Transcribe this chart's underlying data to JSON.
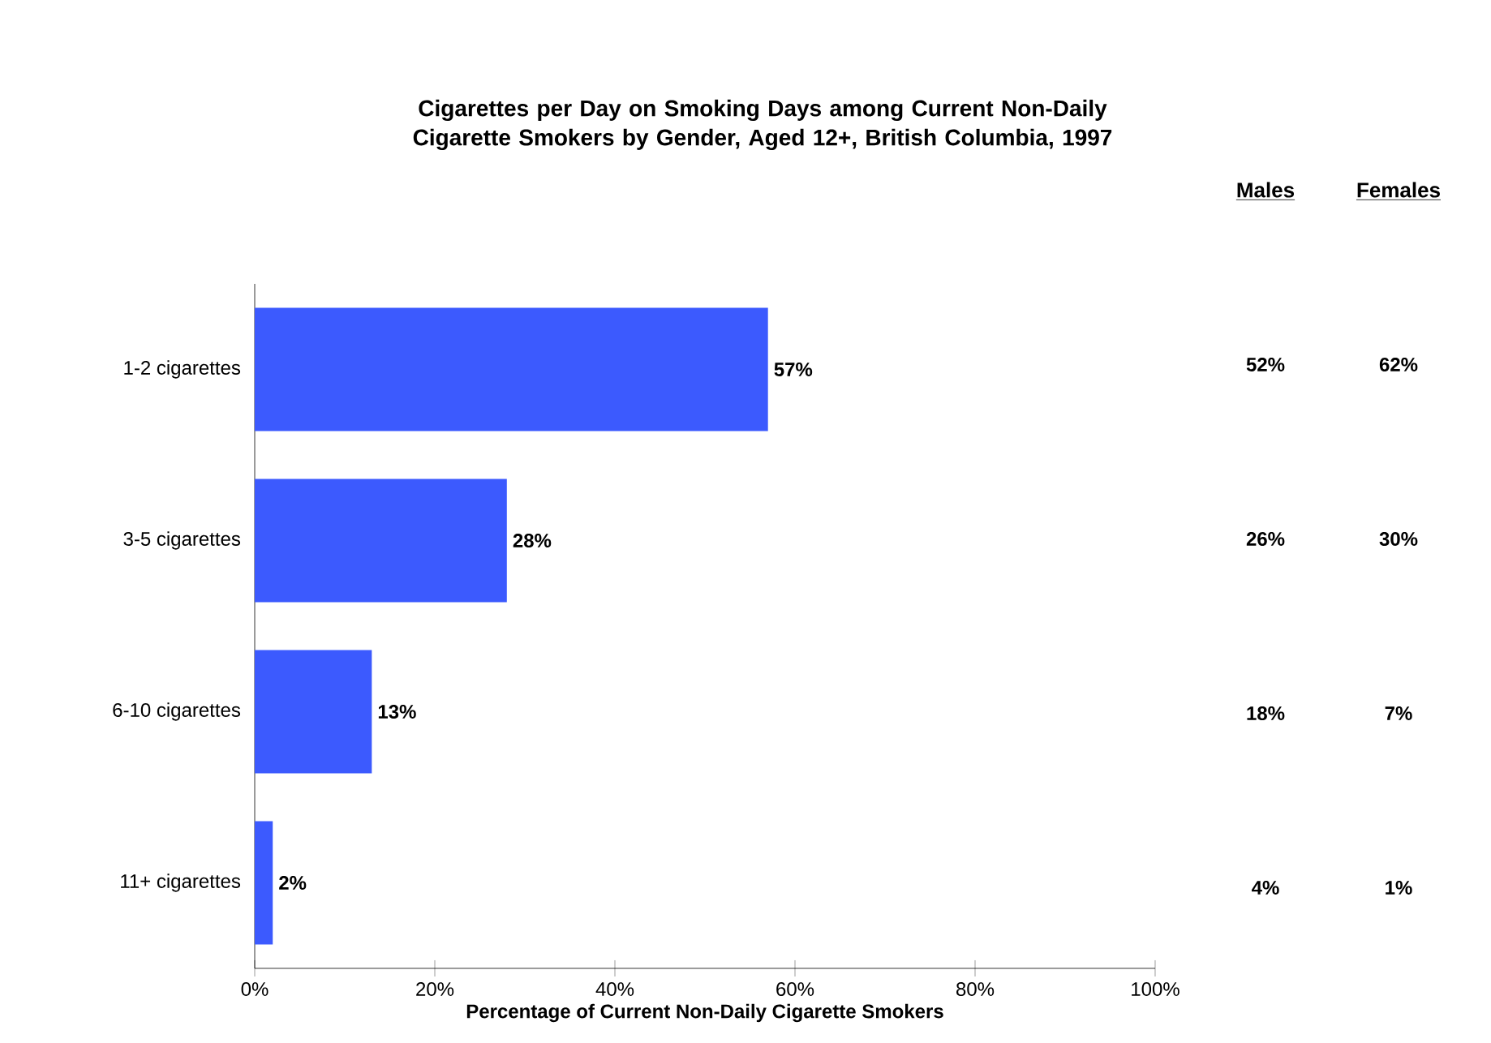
{
  "chart_data": {
    "type": "bar",
    "orientation": "horizontal",
    "title": "Cigarettes per Day on Smoking Days among Current Non-Daily Cigarette Smokers by Gender, Aged 12+, British Columbia, 1997",
    "xlabel": "Percentage of Current Non-Daily Cigarette Smokers",
    "categories": [
      "1-2 cigarettes",
      "3-5 cigarettes",
      "6-10 cigarettes",
      "11+ cigarettes"
    ],
    "values": [
      57,
      28,
      13,
      2
    ],
    "value_labels": [
      "57%",
      "28%",
      "13%",
      "2%"
    ],
    "color": "#3c5afe",
    "xlim": [
      0,
      100
    ],
    "xticks": [
      {
        "value": 0,
        "label": "0%"
      },
      {
        "value": 20,
        "label": "20%"
      },
      {
        "value": 40,
        "label": "40%"
      },
      {
        "value": 60,
        "label": "60%"
      },
      {
        "value": 80,
        "label": "80%"
      },
      {
        "value": 100,
        "label": "100%"
      }
    ],
    "annotations": [
      "Males",
      "Females",
      "52%",
      "62%",
      "26%",
      "30%",
      "18%",
      "7%",
      "4%",
      "1%"
    ]
  }
}
